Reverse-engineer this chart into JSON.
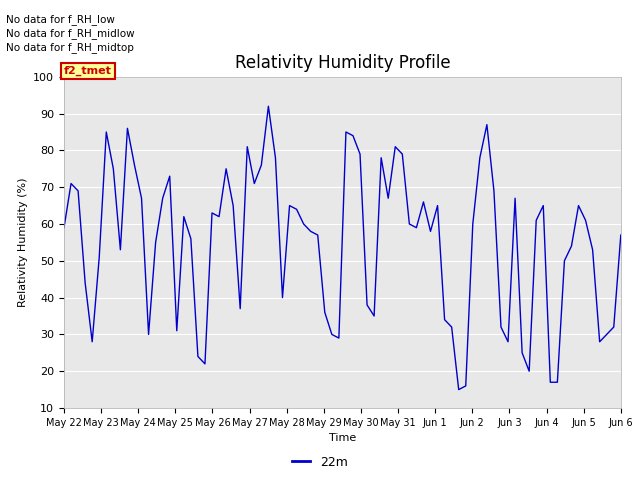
{
  "title": "Relativity Humidity Profile",
  "ylabel": "Relativity Humidity (%)",
  "xlabel": "Time",
  "ylim": [
    10,
    100
  ],
  "bg_color": "#e8e8e8",
  "line_color": "#0000cc",
  "legend_label": "22m",
  "annotations": [
    "No data for f_RH_low",
    "No data for f_RH_midlow",
    "No data for f_RH_midtop"
  ],
  "legend_box_color": "#ffff99",
  "legend_box_edge": "#cc0000",
  "legend_box_text": "f2_tmet",
  "x_tick_labels": [
    "May 22",
    "May 23",
    "May 24",
    "May 25",
    "May 26",
    "May 27",
    "May 28",
    "May 29",
    "May 30",
    "May 31",
    "Jun 1",
    "Jun 2",
    "Jun 3",
    "Jun 4",
    "Jun 5",
    "Jun 6"
  ],
  "rh_values": [
    59,
    71,
    69,
    44,
    28,
    51,
    85,
    75,
    53,
    86,
    76,
    67,
    30,
    55,
    67,
    73,
    31,
    62,
    56,
    24,
    22,
    63,
    62,
    75,
    65,
    37,
    81,
    71,
    76,
    92,
    78,
    40,
    65,
    64,
    60,
    58,
    57,
    36,
    30,
    29,
    85,
    84,
    79,
    38,
    35,
    78,
    67,
    81,
    79,
    60,
    59,
    66,
    58,
    65,
    34,
    32,
    15,
    16,
    60,
    78,
    87,
    69,
    32,
    28,
    67,
    25,
    20,
    61,
    65,
    17,
    17,
    50,
    54,
    65,
    61,
    53,
    28,
    30,
    32,
    57
  ]
}
